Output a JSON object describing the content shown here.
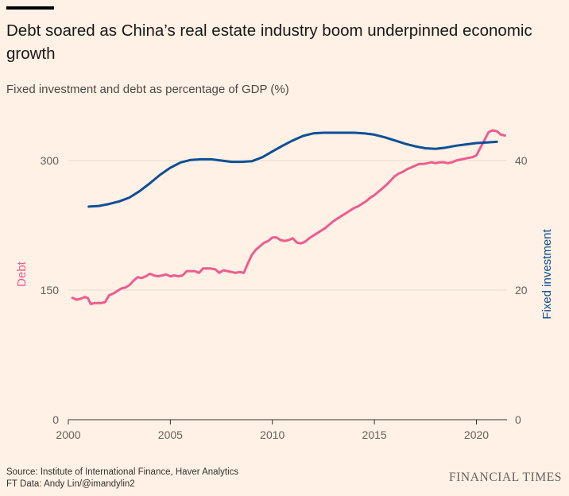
{
  "title": "Debt soared as China’s real estate industry boom underpinned economic growth",
  "subtitle": "Fixed investment and debt as percentage of GDP (%)",
  "footer": {
    "source": "Source: Institute of International Finance, Haver Analytics",
    "credit": "FT Data: Andy Lin/@imandylin2",
    "brand": "FINANCIAL TIMES"
  },
  "colors": {
    "debt": "#ee5c8f",
    "fixed_investment": "#0d4f96",
    "grid": "#e6d9ce",
    "background": "#fff1e5"
  },
  "chart_data": {
    "type": "line",
    "title": "Debt soared as China’s real estate industry boom underpinned economic growth",
    "subtitle": "Fixed investment and debt as percentage of GDP (%)",
    "xlim": [
      2000,
      2021.5
    ],
    "x_ticks": [
      "2000",
      "2005",
      "2010",
      "2015",
      "2020"
    ],
    "left_axis": {
      "label": "Debt",
      "lim": [
        0,
        330
      ],
      "ticks": [
        "0",
        "150",
        "300"
      ]
    },
    "right_axis": {
      "label": "Fixed investment",
      "lim": [
        0,
        44
      ],
      "ticks": [
        "0",
        "20",
        "40"
      ]
    },
    "grid": true,
    "series": [
      {
        "name": "Debt",
        "axis": "left",
        "x": [
          2000.2,
          2000.4,
          2000.6,
          2000.8,
          2000.95,
          2001.1,
          2001.3,
          2001.6,
          2001.8,
          2002.0,
          2002.2,
          2002.4,
          2002.6,
          2002.8,
          2003.0,
          2003.2,
          2003.4,
          2003.6,
          2003.8,
          2004.0,
          2004.2,
          2004.4,
          2004.6,
          2004.8,
          2005.0,
          2005.2,
          2005.4,
          2005.6,
          2005.8,
          2006.0,
          2006.2,
          2006.4,
          2006.6,
          2006.8,
          2007.0,
          2007.2,
          2007.4,
          2007.6,
          2007.8,
          2008.0,
          2008.2,
          2008.4,
          2008.6,
          2008.8,
          2009.0,
          2009.2,
          2009.4,
          2009.6,
          2009.8,
          2010.0,
          2010.2,
          2010.4,
          2010.6,
          2010.8,
          2011.0,
          2011.2,
          2011.4,
          2011.6,
          2011.8,
          2012.0,
          2012.2,
          2012.4,
          2012.6,
          2012.8,
          2013.0,
          2013.2,
          2013.4,
          2013.6,
          2013.8,
          2014.0,
          2014.2,
          2014.4,
          2014.6,
          2014.8,
          2015.0,
          2015.2,
          2015.4,
          2015.6,
          2015.8,
          2016.0,
          2016.2,
          2016.4,
          2016.6,
          2016.8,
          2017.0,
          2017.2,
          2017.4,
          2017.6,
          2017.8,
          2018.0,
          2018.2,
          2018.4,
          2018.6,
          2018.8,
          2019.0,
          2019.2,
          2019.4,
          2019.6,
          2019.8,
          2020.0,
          2020.2,
          2020.4,
          2020.6,
          2020.8,
          2021.0,
          2021.2,
          2021.4
        ],
        "values": [
          141,
          139,
          140,
          142,
          141,
          134,
          135,
          135,
          136,
          144,
          146,
          149,
          152,
          153,
          156,
          161,
          165,
          164,
          166,
          169,
          167,
          166,
          167,
          168,
          166,
          167,
          166,
          167,
          172,
          172,
          172,
          170,
          175,
          175,
          175,
          174,
          170,
          173,
          172,
          171,
          170,
          171,
          170,
          181,
          191,
          197,
          201,
          205,
          207,
          211,
          211,
          208,
          207,
          208,
          210,
          205,
          204,
          206,
          210,
          213,
          216,
          219,
          222,
          226,
          230,
          233,
          236,
          239,
          242,
          245,
          247,
          250,
          253,
          257,
          260,
          264,
          268,
          272,
          277,
          282,
          285,
          287,
          290,
          292,
          294,
          296,
          296,
          297,
          298,
          297,
          298,
          298,
          297,
          298,
          300,
          301,
          302,
          303,
          304,
          306,
          315,
          324,
          333,
          335,
          334,
          330,
          329
        ]
      },
      {
        "name": "Fixed investment",
        "axis": "right",
        "x": [
          2001.0,
          2001.5,
          2002.0,
          2002.5,
          2003.0,
          2003.5,
          2004.0,
          2004.5,
          2005.0,
          2005.5,
          2006.0,
          2006.5,
          2007.0,
          2007.5,
          2008.0,
          2008.5,
          2009.0,
          2009.5,
          2010.0,
          2010.5,
          2011.0,
          2011.5,
          2012.0,
          2012.5,
          2013.0,
          2013.5,
          2014.0,
          2014.5,
          2015.0,
          2015.5,
          2016.0,
          2016.5,
          2017.0,
          2017.5,
          2018.0,
          2018.5,
          2019.0,
          2019.5,
          2020.0,
          2020.5,
          2021.0
        ],
        "values": [
          32.9,
          33.0,
          33.3,
          33.7,
          34.3,
          35.3,
          36.5,
          37.8,
          38.9,
          39.7,
          40.1,
          40.2,
          40.2,
          40.0,
          39.8,
          39.8,
          39.9,
          40.5,
          41.4,
          42.3,
          43.1,
          43.8,
          44.2,
          44.3,
          44.3,
          44.3,
          44.3,
          44.2,
          44.0,
          43.6,
          43.1,
          42.6,
          42.2,
          41.9,
          41.8,
          42.0,
          42.3,
          42.5,
          42.7,
          42.8,
          42.9
        ]
      }
    ]
  }
}
